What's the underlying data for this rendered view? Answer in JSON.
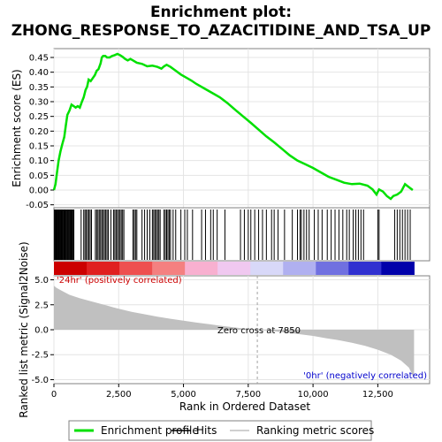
{
  "chart_data": {
    "type": "line",
    "title_line1": "Enrichment plot:",
    "title_line2": "ZHONG_RESPONSE_TO_AZACITIDINE_AND_TSA_UP",
    "es_panel": {
      "ylabel": "Enrichment score (ES)",
      "ylim": [
        -0.06,
        0.48
      ],
      "yticks": [
        {
          "value": -0.05,
          "label": "-0.05"
        },
        {
          "value": 0.0,
          "label": "0.00"
        },
        {
          "value": 0.05,
          "label": "0.05"
        },
        {
          "value": 0.1,
          "label": "0.10"
        },
        {
          "value": 0.15,
          "label": "0.15"
        },
        {
          "value": 0.2,
          "label": "0.20"
        },
        {
          "value": 0.25,
          "label": "0.25"
        },
        {
          "value": 0.3,
          "label": "0.30"
        },
        {
          "value": 0.35,
          "label": "0.35"
        },
        {
          "value": 0.4,
          "label": "0.40"
        },
        {
          "value": 0.45,
          "label": "0.45"
        }
      ],
      "series": {
        "name": "Enrichment profile",
        "color": "#00e000",
        "points": [
          [
            0,
            0.0
          ],
          [
            60,
            0.02
          ],
          [
            120,
            0.06
          ],
          [
            180,
            0.1
          ],
          [
            250,
            0.13
          ],
          [
            320,
            0.155
          ],
          [
            400,
            0.18
          ],
          [
            460,
            0.22
          ],
          [
            520,
            0.255
          ],
          [
            600,
            0.27
          ],
          [
            680,
            0.29
          ],
          [
            760,
            0.285
          ],
          [
            840,
            0.28
          ],
          [
            920,
            0.285
          ],
          [
            1000,
            0.28
          ],
          [
            1080,
            0.3
          ],
          [
            1150,
            0.315
          ],
          [
            1220,
            0.34
          ],
          [
            1280,
            0.35
          ],
          [
            1340,
            0.375
          ],
          [
            1420,
            0.37
          ],
          [
            1500,
            0.38
          ],
          [
            1580,
            0.39
          ],
          [
            1650,
            0.405
          ],
          [
            1720,
            0.41
          ],
          [
            1800,
            0.43
          ],
          [
            1850,
            0.45
          ],
          [
            1900,
            0.455
          ],
          [
            1980,
            0.455
          ],
          [
            2050,
            0.45
          ],
          [
            2150,
            0.45
          ],
          [
            2250,
            0.455
          ],
          [
            2350,
            0.458
          ],
          [
            2450,
            0.462
          ],
          [
            2550,
            0.458
          ],
          [
            2650,
            0.452
          ],
          [
            2750,
            0.445
          ],
          [
            2850,
            0.44
          ],
          [
            2950,
            0.445
          ],
          [
            3050,
            0.44
          ],
          [
            3200,
            0.432
          ],
          [
            3400,
            0.428
          ],
          [
            3600,
            0.42
          ],
          [
            3800,
            0.422
          ],
          [
            4000,
            0.418
          ],
          [
            4150,
            0.412
          ],
          [
            4250,
            0.42
          ],
          [
            4350,
            0.425
          ],
          [
            4500,
            0.418
          ],
          [
            4700,
            0.405
          ],
          [
            4900,
            0.392
          ],
          [
            5100,
            0.382
          ],
          [
            5300,
            0.372
          ],
          [
            5500,
            0.36
          ],
          [
            5800,
            0.345
          ],
          [
            6100,
            0.33
          ],
          [
            6400,
            0.315
          ],
          [
            6700,
            0.295
          ],
          [
            7000,
            0.272
          ],
          [
            7300,
            0.25
          ],
          [
            7600,
            0.228
          ],
          [
            7900,
            0.205
          ],
          [
            8200,
            0.182
          ],
          [
            8500,
            0.162
          ],
          [
            8800,
            0.14
          ],
          [
            9100,
            0.118
          ],
          [
            9400,
            0.1
          ],
          [
            9700,
            0.088
          ],
          [
            10000,
            0.075
          ],
          [
            10300,
            0.06
          ],
          [
            10600,
            0.045
          ],
          [
            10900,
            0.035
          ],
          [
            11200,
            0.025
          ],
          [
            11500,
            0.02
          ],
          [
            11800,
            0.022
          ],
          [
            12100,
            0.015
          ],
          [
            12300,
            0.002
          ],
          [
            12450,
            -0.015
          ],
          [
            12550,
            0.002
          ],
          [
            12700,
            -0.005
          ],
          [
            12850,
            -0.02
          ],
          [
            13000,
            -0.03
          ],
          [
            13100,
            -0.02
          ],
          [
            13250,
            -0.015
          ],
          [
            13400,
            -0.005
          ],
          [
            13550,
            0.02
          ],
          [
            13700,
            0.01
          ],
          [
            13850,
            0.0
          ]
        ]
      }
    },
    "hits_panel": {
      "name": "Hits",
      "hit_positions": [
        20,
        45,
        70,
        95,
        120,
        150,
        175,
        200,
        225,
        250,
        275,
        300,
        325,
        350,
        380,
        410,
        440,
        470,
        500,
        530,
        560,
        590,
        620,
        650,
        680,
        710,
        740,
        770,
        1050,
        1150,
        1200,
        1250,
        1300,
        1350,
        1400,
        1450,
        1600,
        1650,
        1700,
        1750,
        1800,
        1850,
        1900,
        1950,
        2000,
        2050,
        2100,
        2200,
        2300,
        2350,
        2400,
        2450,
        2500,
        2550,
        2600,
        2650,
        2700,
        3050,
        3100,
        3150,
        3200,
        3400,
        3500,
        3600,
        3700,
        3800,
        3850,
        3900,
        3950,
        4000,
        4050,
        4100,
        4250,
        4300,
        4350,
        4400,
        4450,
        4500,
        4600,
        4700,
        4900,
        5050,
        5150,
        5350,
        5700,
        5850,
        6050,
        6150,
        6300,
        6600,
        7200,
        7350,
        7500,
        7600,
        7750,
        7900,
        8050,
        8200,
        8400,
        8500,
        8650,
        8900,
        9200,
        9400,
        9500,
        9550,
        9650,
        9750,
        9850,
        10050,
        10200,
        10350,
        10550,
        10700,
        10850,
        11000,
        11150,
        11300,
        11400,
        11550,
        11650,
        11750,
        11850,
        11950,
        12500,
        12550,
        13150,
        13250,
        13350,
        13450,
        13550,
        13650,
        13750
      ],
      "bar_colors": [
        "#cc0000",
        "#e02020",
        "#ee5050",
        "#f48080",
        "#f8b0d0",
        "#f0c8f0",
        "#d8d8f8",
        "#b0b0f0",
        "#7070e0",
        "#3030d0",
        "#0000aa"
      ]
    },
    "rank_panel": {
      "ylabel": "Ranked list metric (Signal2Noise)",
      "ylim": [
        -5.4,
        5.4
      ],
      "yticks": [
        {
          "value": -5.0,
          "label": "-5.0"
        },
        {
          "value": -2.5,
          "label": "-2.5"
        },
        {
          "value": 0.0,
          "label": "0.0"
        },
        {
          "value": 2.5,
          "label": "2.5"
        },
        {
          "value": 5.0,
          "label": "5.0"
        }
      ],
      "profile": [
        [
          0,
          4.4
        ],
        [
          100,
          4.2
        ],
        [
          300,
          3.9
        ],
        [
          600,
          3.5
        ],
        [
          1000,
          3.15
        ],
        [
          1500,
          2.8
        ],
        [
          2000,
          2.45
        ],
        [
          2500,
          2.1
        ],
        [
          3000,
          1.8
        ],
        [
          3500,
          1.55
        ],
        [
          4000,
          1.3
        ],
        [
          4500,
          1.1
        ],
        [
          5000,
          0.9
        ],
        [
          5500,
          0.72
        ],
        [
          6000,
          0.55
        ],
        [
          6500,
          0.38
        ],
        [
          7000,
          0.22
        ],
        [
          7500,
          0.08
        ],
        [
          7850,
          0.0
        ],
        [
          8500,
          -0.15
        ],
        [
          9000,
          -0.3
        ],
        [
          9500,
          -0.45
        ],
        [
          10000,
          -0.62
        ],
        [
          10500,
          -0.85
        ],
        [
          11000,
          -1.05
        ],
        [
          11500,
          -1.3
        ],
        [
          12000,
          -1.6
        ],
        [
          12500,
          -2.0
        ],
        [
          13000,
          -2.5
        ],
        [
          13400,
          -3.1
        ],
        [
          13700,
          -3.8
        ],
        [
          13850,
          -4.6
        ],
        [
          13900,
          -4.9
        ]
      ],
      "positive_label": "'24hr' (positively correlated)",
      "negative_label": "'0hr' (negatively correlated)",
      "positive_color": "#cc0000",
      "negative_color": "#0000cc",
      "zero_cross_label": "Zero cross at 7850",
      "zero_cross_x": 7850
    },
    "x_axis": {
      "label": "Rank in Ordered Dataset",
      "xlim": [
        0,
        14500
      ],
      "max_rank": 13900,
      "xticks": [
        {
          "value": 0,
          "label": "0"
        },
        {
          "value": 2500,
          "label": "2,500"
        },
        {
          "value": 5000,
          "label": "5,000"
        },
        {
          "value": 7500,
          "label": "7,500"
        },
        {
          "value": 10000,
          "label": "10,000"
        },
        {
          "value": 12500,
          "label": "12,500"
        }
      ]
    },
    "legend": {
      "items": [
        {
          "label": "Enrichment profile",
          "color": "#00e000"
        },
        {
          "label": "Hits",
          "color": "#000000"
        },
        {
          "label": "Ranking metric scores",
          "color": "#c0c0c0"
        }
      ]
    }
  }
}
